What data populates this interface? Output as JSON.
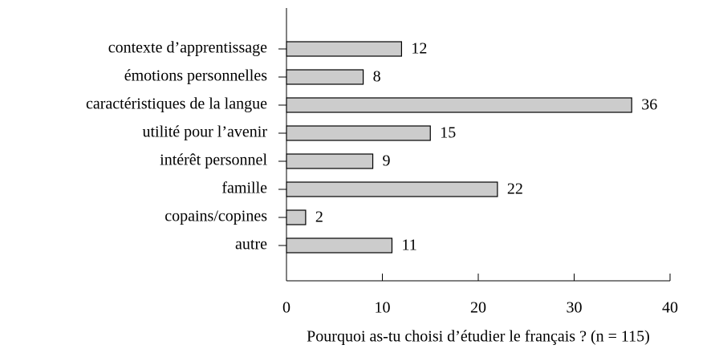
{
  "chart_data": {
    "type": "barh",
    "xlabel": "Pourquoi as-tu choisi d’étudier le français ? (n = 115)",
    "categories": [
      "contexte d’apprentissage",
      "émotions personnelles",
      "caractéristiques de la langue",
      "utilité pour l’avenir",
      "intérêt personnel",
      "famille",
      "copains/copines",
      "autre"
    ],
    "values": [
      12,
      8,
      36,
      15,
      9,
      22,
      2,
      11
    ],
    "color": "#cccccc",
    "xlim": [
      0,
      40
    ],
    "xticks": [
      0,
      10,
      20,
      30,
      40
    ]
  }
}
